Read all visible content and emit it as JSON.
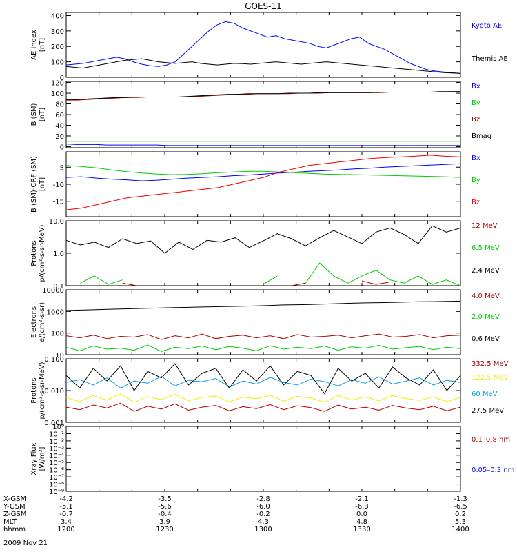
{
  "title": "GOES-11",
  "colors": {
    "blue": "#0000ff",
    "black": "#000000",
    "red": "#aa0000",
    "green": "#00cc00",
    "cyan": "#00a0e0",
    "yellow": "#eeee00"
  },
  "footer": {
    "rows": [
      {
        "label": "X-GSM",
        "values": [
          "-4.2",
          "-3.5",
          "-2.8",
          "-2.1",
          "-1.3"
        ]
      },
      {
        "label": "Y-GSM",
        "values": [
          "-5.1",
          "-5.6",
          "-6.0",
          "-6.3",
          "-6.5"
        ]
      },
      {
        "label": "Z-GSM",
        "values": [
          "-0.7",
          "-0.4",
          "-0.2",
          "0.0",
          "0.2"
        ]
      },
      {
        "label": "MLT",
        "values": [
          "3.4",
          "3.9",
          "4.3",
          "4.8",
          "5.3"
        ]
      },
      {
        "label": "hhmm",
        "values": [
          "1200",
          "1230",
          "1300",
          "1330",
          "1400"
        ]
      }
    ],
    "date": "2009 Nov 21"
  },
  "chart_data": [
    {
      "type": "line",
      "ylabel": "AE index",
      "yunit": "[nT]",
      "scale": "linear",
      "ylim": [
        0,
        420
      ],
      "yticks": [
        "0",
        "100",
        "200",
        "300",
        "400"
      ],
      "ytick_values": [
        0,
        100,
        200,
        300,
        400
      ],
      "x": {
        "start": "1200",
        "end": "1400"
      },
      "series": [
        {
          "name": "Kyoto AE",
          "color": "#0000ff",
          "values": [
            80,
            85,
            90,
            100,
            110,
            120,
            130,
            120,
            100,
            85,
            75,
            70,
            80,
            100,
            150,
            200,
            250,
            300,
            340,
            360,
            350,
            320,
            300,
            280,
            260,
            270,
            250,
            240,
            230,
            220,
            200,
            190,
            210,
            230,
            250,
            260,
            220,
            200,
            180,
            150,
            120,
            90,
            70,
            50,
            40,
            35,
            30,
            25
          ]
        },
        {
          "name": "Themis AE",
          "color": "#000000",
          "values": [
            70,
            65,
            60,
            70,
            80,
            90,
            100,
            110,
            115,
            120,
            110,
            100,
            95,
            90,
            95,
            100,
            90,
            85,
            80,
            85,
            90,
            88,
            85,
            90,
            95,
            100,
            95,
            90,
            85,
            90,
            95,
            100,
            95,
            90,
            85,
            80,
            75,
            70,
            65,
            60,
            55,
            50,
            45,
            40,
            35,
            30,
            28,
            25
          ]
        }
      ]
    },
    {
      "type": "line",
      "ylabel": "B (SM)",
      "yunit": "[nT]",
      "scale": "linear",
      "ylim": [
        -2,
        122
      ],
      "yticks": [
        "0",
        "20",
        "40",
        "60",
        "80",
        "100",
        "120"
      ],
      "ytick_values": [
        0,
        20,
        40,
        60,
        80,
        100,
        120
      ],
      "x": {
        "start": "1200",
        "end": "1400"
      },
      "series": [
        {
          "name": "Bx",
          "color": "#0000ff",
          "values": [
            5,
            4,
            4,
            4,
            3,
            3,
            3,
            3,
            3,
            3,
            2,
            2,
            2,
            2,
            2,
            2,
            2,
            2,
            2,
            2,
            2,
            2,
            2,
            2,
            2,
            2,
            2,
            2,
            2,
            2,
            2,
            2,
            2,
            2,
            2,
            2,
            2,
            2,
            2,
            2
          ]
        },
        {
          "name": "By",
          "color": "#00cc00",
          "values": [
            10,
            10,
            10,
            10,
            10,
            10,
            10,
            10,
            10,
            10,
            10,
            10,
            10,
            10,
            10,
            10,
            10,
            10,
            10,
            10,
            10,
            10,
            10,
            10,
            10,
            10,
            10,
            10,
            10,
            10,
            10,
            10,
            10,
            10,
            10,
            10,
            10,
            10,
            10,
            10
          ]
        },
        {
          "name": "Bz",
          "color": "#aa0000",
          "values": [
            87,
            87,
            88,
            89,
            90,
            91,
            92,
            92,
            93,
            93,
            93,
            93,
            93,
            94,
            95,
            96,
            97,
            98,
            98,
            99,
            99,
            99,
            99,
            100,
            100,
            100,
            101,
            101,
            101,
            101,
            101,
            101,
            102,
            102,
            102,
            102,
            102,
            102,
            103,
            103
          ]
        },
        {
          "name": "Bmag",
          "color": "#000000",
          "values": [
            88,
            88,
            89,
            90,
            91,
            92,
            92,
            93,
            93,
            93,
            93,
            93,
            94,
            95,
            96,
            97,
            98,
            98,
            99,
            99,
            99,
            99,
            100,
            100,
            100,
            101,
            101,
            101,
            101,
            101,
            101,
            102,
            102,
            102,
            102,
            102,
            102,
            103,
            103,
            103
          ]
        }
      ]
    },
    {
      "type": "line",
      "ylabel": "B (SM)-CRF (SM)",
      "yunit": "[nT]",
      "scale": "linear",
      "ylim": [
        -19.5,
        -0.5
      ],
      "yticks": [
        "-15",
        "-10",
        "-5"
      ],
      "ytick_values": [
        -15,
        -10,
        -5
      ],
      "x": {
        "start": "1200",
        "end": "1400"
      },
      "series": [
        {
          "name": "Bx",
          "color": "#0000ff",
          "values": [
            -8,
            -7.8,
            -8.2,
            -8.5,
            -8.7,
            -9,
            -8.8,
            -8.5,
            -8.2,
            -8,
            -7.8,
            -7.5,
            -7.3,
            -7,
            -6.7,
            -6.5,
            -6.2,
            -6,
            -5.8,
            -5.5,
            -5.3,
            -5,
            -4.8,
            -4.6,
            -4.4,
            -4.2,
            -4
          ]
        },
        {
          "name": "By",
          "color": "#00cc00",
          "values": [
            -4.5,
            -4.8,
            -5.2,
            -5.8,
            -6.3,
            -6.7,
            -7,
            -7.2,
            -7.1,
            -6.9,
            -6.6,
            -6.4,
            -6.2,
            -6.2,
            -6.4,
            -6.6,
            -6.8,
            -7,
            -7.1,
            -7.2,
            -7.3,
            -7.4,
            -7.5,
            -7.6,
            -7.7,
            -7.8,
            -8
          ]
        },
        {
          "name": "Bz",
          "color": "#ee0000",
          "values": [
            -17.5,
            -17,
            -16,
            -15,
            -14,
            -13.5,
            -13,
            -12.5,
            -12,
            -11.5,
            -11,
            -10,
            -9,
            -8,
            -6.5,
            -5.5,
            -4.5,
            -4,
            -3.5,
            -3,
            -2.5,
            -2.2,
            -2,
            -1.8,
            -1.5,
            -1.8,
            -2
          ]
        }
      ]
    },
    {
      "type": "line",
      "ylabel": "Protons",
      "yunit": "p/(cm²-s-sr-MeV)",
      "scale": "log",
      "ylim": [
        0.1,
        10
      ],
      "yticks": [
        "0.1",
        "1.0",
        "10.0"
      ],
      "ytick_values": [
        0.1,
        1,
        10
      ],
      "x": {
        "start": "1200",
        "end": "1400"
      },
      "series": [
        {
          "name": "12 MeV",
          "color": "#aa0000",
          "values": [
            null,
            null,
            null,
            null,
            0.12,
            0.1,
            null,
            null,
            0.15,
            null,
            null,
            0.11,
            null,
            null,
            0.13,
            null,
            0.1,
            0.12,
            null,
            0.1,
            null,
            0.14,
            0.11,
            0.13,
            null,
            null,
            0.12,
            null,
            0.1
          ]
        },
        {
          "name": "6.5 MeV",
          "color": "#00cc00",
          "values": [
            null,
            0.12,
            0.2,
            0.11,
            0.15,
            null,
            0.2,
            null,
            0.12,
            null,
            0.2,
            null,
            0.15,
            null,
            0.11,
            0.2,
            null,
            0.12,
            0.5,
            0.2,
            0.12,
            0.2,
            0.3,
            0.15,
            0.12,
            0.2,
            0.11,
            0.15,
            0.1
          ]
        },
        {
          "name": "2.4 MeV",
          "color": "#000000",
          "values": [
            2.5,
            1.8,
            2.2,
            1.5,
            2.8,
            2,
            2.4,
            1,
            2.2,
            1.3,
            2.5,
            2.2,
            3,
            1.5,
            2.4,
            4,
            2.8,
            1.7,
            3,
            5,
            3.2,
            2,
            4.5,
            6,
            3.8,
            2,
            7,
            4.5,
            6
          ]
        }
      ]
    },
    {
      "type": "line",
      "ylabel": "Electrons",
      "yunit": "e/(cm²-s-sr)",
      "scale": "log",
      "ylim": [
        10,
        10000
      ],
      "yticks": [
        "10",
        "100",
        "1000",
        "10000"
      ],
      "ytick_values": [
        10,
        100,
        1000,
        10000
      ],
      "x": {
        "start": "1200",
        "end": "1400"
      },
      "series": [
        {
          "name": "4.0 MeV",
          "color": "#aa0000",
          "values": [
            75,
            60,
            80,
            55,
            70,
            65,
            85,
            50,
            75,
            60,
            90,
            55,
            70,
            80,
            60,
            75,
            55,
            85,
            65,
            70,
            80,
            60,
            75,
            90,
            65,
            70,
            85,
            60,
            75,
            80
          ]
        },
        {
          "name": "2.0 MeV",
          "color": "#00cc00",
          "values": [
            22,
            15,
            25,
            18,
            20,
            16,
            28,
            14,
            22,
            19,
            25,
            17,
            24,
            20,
            15,
            26,
            18,
            22,
            19,
            25,
            16,
            23,
            20,
            27,
            18,
            21,
            24,
            17,
            22,
            19
          ]
        },
        {
          "name": "0.6 MeV",
          "color": "#000000",
          "values": [
            1100,
            1150,
            1200,
            1250,
            1300,
            1350,
            1400,
            1450,
            1500,
            1550,
            1600,
            1650,
            1700,
            1750,
            1800,
            1900,
            2000,
            2050,
            2100,
            2200,
            2300,
            2400,
            2500,
            2550,
            2600,
            2700,
            2800,
            2850,
            2900,
            3000
          ]
        }
      ]
    },
    {
      "type": "line",
      "ylabel": "Protons",
      "yunit": "p/(cm²-s-sr-MeV)",
      "scale": "log",
      "ylim": [
        0.001,
        0.1
      ],
      "yticks": [
        "0.001",
        "0.010",
        "0.100"
      ],
      "ytick_values": [
        0.001,
        0.01,
        0.1
      ],
      "x": {
        "start": "1200",
        "end": "1400"
      },
      "series": [
        {
          "name": "332.5 MeV",
          "color": "#aa0000",
          "values": [
            0.003,
            0.0025,
            0.0035,
            0.0028,
            0.004,
            0.0022,
            0.0032,
            0.0026,
            0.0038,
            0.0024,
            0.003,
            0.0034,
            0.0023,
            0.0031,
            0.0027,
            0.0036,
            0.0025,
            0.0033,
            0.0029,
            0.0022,
            0.0035,
            0.0026,
            0.003,
            0.0024,
            0.0034,
            0.0028,
            0.0025,
            0.0032,
            0.0023,
            0.003
          ]
        },
        {
          "name": "122.5 MeV",
          "color": "#eeee00",
          "values": [
            0.006,
            0.0045,
            0.007,
            0.005,
            0.008,
            0.0042,
            0.0065,
            0.0052,
            0.0075,
            0.0048,
            0.006,
            0.0068,
            0.0044,
            0.0062,
            0.0055,
            0.0072,
            0.0046,
            0.0066,
            0.0058,
            0.0043,
            0.007,
            0.005,
            0.0064,
            0.0047,
            0.0069,
            0.0056,
            0.0049,
            0.0063,
            0.0045,
            0.006
          ]
        },
        {
          "name": "60 MeV",
          "color": "#00a0e0",
          "values": [
            0.018,
            0.022,
            0.015,
            0.025,
            0.012,
            0.02,
            0.017,
            0.028,
            0.014,
            0.021,
            0.019,
            0.024,
            0.013,
            0.02,
            0.016,
            0.026,
            0.018,
            0.015,
            0.023,
            0.019,
            0.014,
            0.022,
            0.017,
            0.027,
            0.016,
            0.02,
            0.025,
            0.015,
            0.021,
            0.018
          ]
        },
        {
          "name": "27.5 MeV",
          "color": "#000000",
          "values": [
            0.03,
            0.012,
            0.05,
            0.02,
            0.06,
            0.01,
            0.04,
            0.025,
            0.07,
            0.015,
            0.035,
            0.05,
            0.012,
            0.045,
            0.02,
            0.06,
            0.015,
            0.04,
            0.03,
            0.008,
            0.05,
            0.02,
            0.035,
            0.012,
            0.055,
            0.025,
            0.015,
            0.045,
            0.01,
            0.03
          ]
        }
      ]
    },
    {
      "type": "line",
      "ylabel": "Xray Flux",
      "yunit": "[W/m²]",
      "scale": "log",
      "ylim": [
        1e-09,
        1
      ],
      "yticks": [
        "10⁻⁹",
        "10⁻⁸",
        "10⁻⁷",
        "10⁻⁶",
        "10⁻⁵",
        "10⁻⁴",
        "10⁻³",
        "10⁻²",
        "10⁻¹",
        "10⁰"
      ],
      "ytick_values": [
        1e-09,
        1e-08,
        1e-07,
        1e-06,
        1e-05,
        0.0001,
        0.001,
        0.01,
        0.1,
        1
      ],
      "x": {
        "start": "1200",
        "end": "1400"
      },
      "series": [
        {
          "name": "0.1–0.8 nm",
          "color": "#aa0000",
          "values": []
        },
        {
          "name": "0.05–0.3 nm",
          "color": "#0000ff",
          "values": []
        }
      ]
    }
  ]
}
